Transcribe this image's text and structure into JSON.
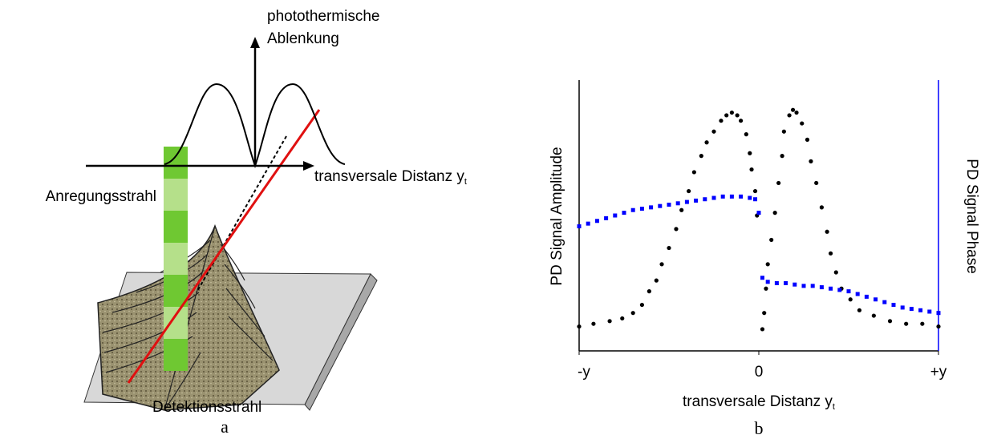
{
  "diagram": {
    "y_axis_label": [
      "photothermische",
      "Ablenkung"
    ],
    "x_axis_label": "transversale Distanz y",
    "x_axis_label_subscript": "t",
    "excitation_beam": "Anregungsstrahl",
    "detection_beam": "Detektionsstrahl",
    "caption": "a"
  },
  "chart_data": {
    "type": "scatter",
    "caption": "b",
    "x_label": "transversale Distanz y",
    "x_label_subscript": "t",
    "y_label": "PD Signal Amplitude",
    "y2_label": "PD Signal Phase",
    "xlim": [
      -1,
      1
    ],
    "xticks": [
      {
        "value": -1,
        "label": "-y"
      },
      0,
      {
        "value": 1,
        "label": "+y"
      }
    ],
    "ylim": [
      0,
      1
    ],
    "y2lim": [
      0,
      1
    ],
    "series": [
      {
        "name": "PD Signal Amplitude",
        "color": "#000000",
        "marker": "circle",
        "x": [
          -1.0,
          -0.92,
          -0.83,
          -0.76,
          -0.7,
          -0.65,
          -0.61,
          -0.57,
          -0.54,
          -0.5,
          -0.46,
          -0.43,
          -0.39,
          -0.36,
          -0.32,
          -0.29,
          -0.25,
          -0.21,
          -0.18,
          -0.15,
          -0.12,
          -0.1,
          -0.07,
          -0.05,
          -0.04,
          -0.02,
          -0.01,
          0.02,
          0.03,
          0.04,
          0.05,
          0.07,
          0.09,
          0.11,
          0.13,
          0.14,
          0.17,
          0.19,
          0.21,
          0.24,
          0.27,
          0.29,
          0.32,
          0.35,
          0.38,
          0.4,
          0.43,
          0.46,
          0.51,
          0.56,
          0.64,
          0.73,
          0.82,
          0.91,
          1.0
        ],
        "values": [
          0.09,
          0.1,
          0.11,
          0.12,
          0.14,
          0.17,
          0.22,
          0.26,
          0.32,
          0.38,
          0.45,
          0.52,
          0.59,
          0.66,
          0.72,
          0.77,
          0.81,
          0.85,
          0.87,
          0.88,
          0.87,
          0.85,
          0.8,
          0.73,
          0.67,
          0.59,
          0.5,
          0.08,
          0.14,
          0.23,
          0.32,
          0.41,
          0.51,
          0.62,
          0.72,
          0.81,
          0.87,
          0.89,
          0.88,
          0.84,
          0.78,
          0.7,
          0.62,
          0.53,
          0.44,
          0.36,
          0.29,
          0.23,
          0.19,
          0.15,
          0.13,
          0.11,
          0.1,
          0.1,
          0.09
        ]
      },
      {
        "name": "PD Signal Phase",
        "color": "#0000ff",
        "marker": "square",
        "axis": "y2",
        "x": [
          -1.0,
          -0.95,
          -0.9,
          -0.85,
          -0.8,
          -0.75,
          -0.7,
          -0.65,
          -0.6,
          -0.55,
          -0.5,
          -0.45,
          -0.4,
          -0.35,
          -0.3,
          -0.25,
          -0.2,
          -0.15,
          -0.1,
          -0.05,
          -0.02,
          0.0,
          0.02,
          0.05,
          0.1,
          0.15,
          0.2,
          0.25,
          0.3,
          0.35,
          0.4,
          0.45,
          0.5,
          0.55,
          0.6,
          0.65,
          0.7,
          0.75,
          0.8,
          0.85,
          0.9,
          0.95,
          1.0
        ],
        "values": [
          0.46,
          0.47,
          0.48,
          0.49,
          0.5,
          0.51,
          0.52,
          0.525,
          0.53,
          0.535,
          0.54,
          0.545,
          0.55,
          0.555,
          0.56,
          0.565,
          0.57,
          0.57,
          0.57,
          0.565,
          0.56,
          0.51,
          0.27,
          0.255,
          0.25,
          0.25,
          0.245,
          0.24,
          0.24,
          0.235,
          0.23,
          0.225,
          0.22,
          0.21,
          0.2,
          0.19,
          0.18,
          0.17,
          0.16,
          0.155,
          0.15,
          0.145,
          0.14
        ]
      }
    ]
  }
}
